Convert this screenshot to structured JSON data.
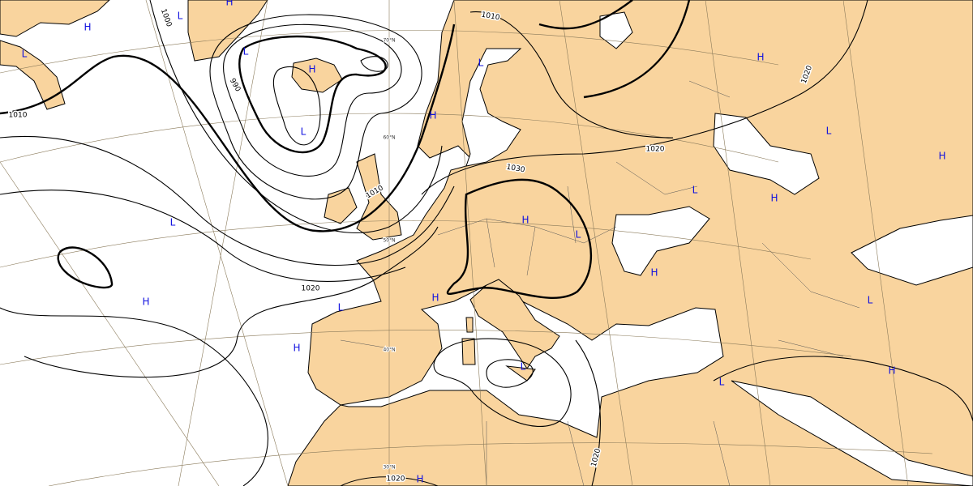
{
  "isobar_labels": [
    1000,
    1010,
    990,
    1010,
    1020,
    1020,
    1030,
    1020,
    1010,
    1020,
    1020
  ],
  "pressure_centers": [
    "H",
    "L",
    "H",
    "L",
    "L",
    "H",
    "L",
    "H",
    "L",
    "L",
    "H",
    "L",
    "H",
    "H",
    "H",
    "L",
    "H",
    "L",
    "H",
    "L",
    "H",
    "H",
    "L",
    "H",
    "L",
    "L",
    "H"
  ],
  "latitude_labels": [
    "70°N",
    "60°N",
    "50°N",
    "40°N",
    "30°N"
  ]
}
